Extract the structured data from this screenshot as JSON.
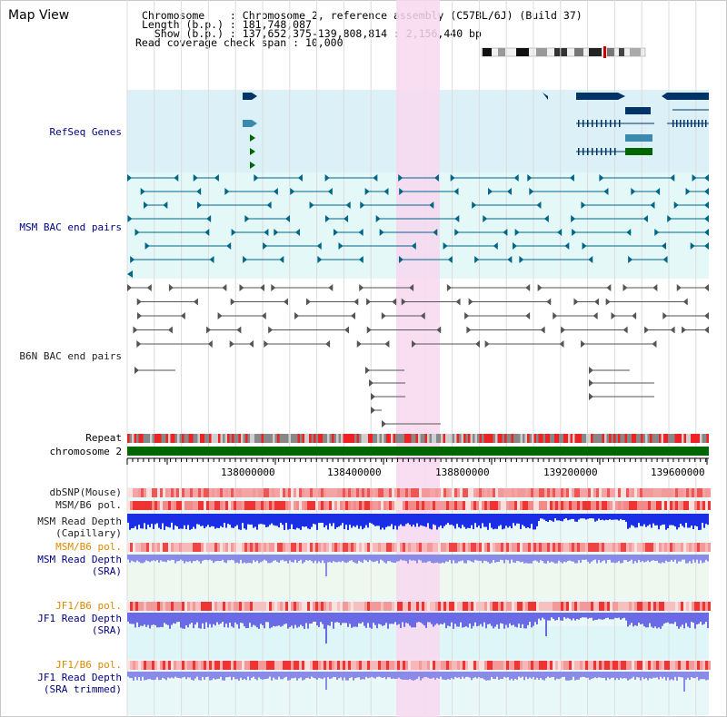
{
  "app": {
    "title": "Map View"
  },
  "info": {
    "chromosome_key": "Chromosome    :",
    "chromosome_value": "Chromosome 2, reference assembly (C57BL/6J) (Build 37)",
    "length_key": "Length (b.p.) :",
    "length_value": "181,748,087",
    "show_key": "  Show (b.p.) :",
    "show_value": "137,652,375-139,808,814 : 2,156,440 bp",
    "coverage_key": "Read coverage check span :",
    "coverage_value": "10,000"
  },
  "tracks": {
    "refseq": "RefSeq Genes",
    "msm_bac": "MSM BAC end pairs",
    "b6n_bac": "B6N BAC end pairs",
    "repeat": "Repeat",
    "chromosome": "chromosome 2",
    "dbsnp": "dbSNP(Mouse)",
    "msm_b6_pol": "MSM/B6 pol.",
    "msm_depth_cap_1": "MSM Read Depth",
    "msm_depth_cap_2": "(Capillary)",
    "msm_b6_pol_sra": "MSM/B6 pol.",
    "msm_depth_sra_1": "MSM Read Depth",
    "msm_depth_sra_2": "(SRA)",
    "jf1_b6_pol": "JF1/B6 pol.",
    "jf1_depth_sra_1": "JF1 Read Depth",
    "jf1_depth_sra_2": "(SRA)",
    "jf1_b6_pol_trim": "JF1/B6 pol.",
    "jf1_depth_trim_1": "JF1 Read Depth",
    "jf1_depth_trim_2": "(SRA trimmed)"
  },
  "axis": {
    "start_bp": 137652375,
    "end_bp": 139808814,
    "ticks": [
      "138000000",
      "138400000",
      "138800000",
      "139200000",
      "139600000"
    ]
  },
  "colors": {
    "refseq_bg": "#dcf0f8",
    "bac_bg": "#e4f8f8",
    "highlight": "#f8d8f0",
    "chromosome_bar": "#006600",
    "depth_blue": "#1a2ee6",
    "depth_light": "#8a8ae8",
    "gene_dark": "#003366",
    "gene_teal": "#3a8ab0",
    "gene_green": "#006600",
    "bac_teal": "#006688",
    "bac_gray": "#555555"
  }
}
